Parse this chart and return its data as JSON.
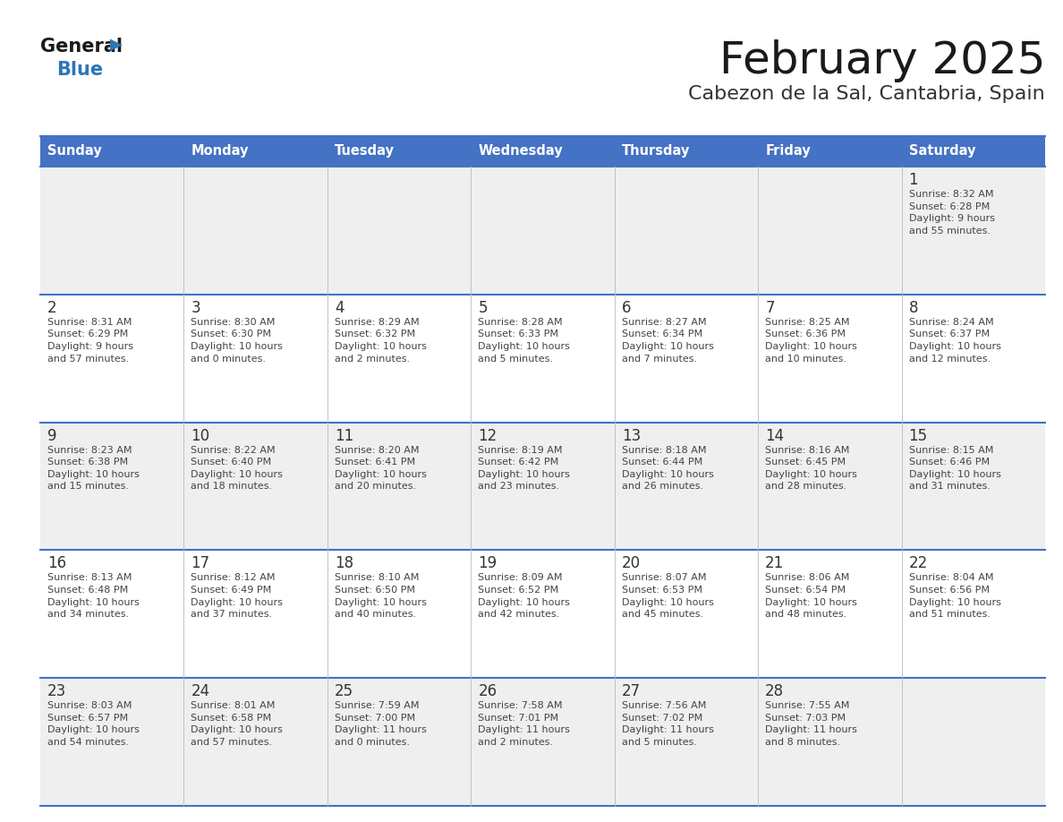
{
  "title": "February 2025",
  "subtitle": "Cabezon de la Sal, Cantabria, Spain",
  "days_of_week": [
    "Sunday",
    "Monday",
    "Tuesday",
    "Wednesday",
    "Thursday",
    "Friday",
    "Saturday"
  ],
  "header_bg": "#4472C4",
  "header_text": "#FFFFFF",
  "cell_bg_row0": "#EFEFEF",
  "cell_bg_row1": "#FFFFFF",
  "cell_bg_row2": "#EFEFEF",
  "cell_bg_row3": "#FFFFFF",
  "cell_bg_row4": "#EFEFEF",
  "border_color": "#4472C4",
  "grid_line_color": "#CCCCCC",
  "day_number_color": "#333333",
  "info_text_color": "#444444",
  "title_color": "#1a1a1a",
  "subtitle_color": "#333333",
  "logo_general_color": "#1a1a1a",
  "logo_blue_color": "#2E75B6",
  "weeks": [
    {
      "days": [
        {
          "date": null,
          "info": null
        },
        {
          "date": null,
          "info": null
        },
        {
          "date": null,
          "info": null
        },
        {
          "date": null,
          "info": null
        },
        {
          "date": null,
          "info": null
        },
        {
          "date": null,
          "info": null
        },
        {
          "date": 1,
          "info": "Sunrise: 8:32 AM\nSunset: 6:28 PM\nDaylight: 9 hours\nand 55 minutes."
        }
      ]
    },
    {
      "days": [
        {
          "date": 2,
          "info": "Sunrise: 8:31 AM\nSunset: 6:29 PM\nDaylight: 9 hours\nand 57 minutes."
        },
        {
          "date": 3,
          "info": "Sunrise: 8:30 AM\nSunset: 6:30 PM\nDaylight: 10 hours\nand 0 minutes."
        },
        {
          "date": 4,
          "info": "Sunrise: 8:29 AM\nSunset: 6:32 PM\nDaylight: 10 hours\nand 2 minutes."
        },
        {
          "date": 5,
          "info": "Sunrise: 8:28 AM\nSunset: 6:33 PM\nDaylight: 10 hours\nand 5 minutes."
        },
        {
          "date": 6,
          "info": "Sunrise: 8:27 AM\nSunset: 6:34 PM\nDaylight: 10 hours\nand 7 minutes."
        },
        {
          "date": 7,
          "info": "Sunrise: 8:25 AM\nSunset: 6:36 PM\nDaylight: 10 hours\nand 10 minutes."
        },
        {
          "date": 8,
          "info": "Sunrise: 8:24 AM\nSunset: 6:37 PM\nDaylight: 10 hours\nand 12 minutes."
        }
      ]
    },
    {
      "days": [
        {
          "date": 9,
          "info": "Sunrise: 8:23 AM\nSunset: 6:38 PM\nDaylight: 10 hours\nand 15 minutes."
        },
        {
          "date": 10,
          "info": "Sunrise: 8:22 AM\nSunset: 6:40 PM\nDaylight: 10 hours\nand 18 minutes."
        },
        {
          "date": 11,
          "info": "Sunrise: 8:20 AM\nSunset: 6:41 PM\nDaylight: 10 hours\nand 20 minutes."
        },
        {
          "date": 12,
          "info": "Sunrise: 8:19 AM\nSunset: 6:42 PM\nDaylight: 10 hours\nand 23 minutes."
        },
        {
          "date": 13,
          "info": "Sunrise: 8:18 AM\nSunset: 6:44 PM\nDaylight: 10 hours\nand 26 minutes."
        },
        {
          "date": 14,
          "info": "Sunrise: 8:16 AM\nSunset: 6:45 PM\nDaylight: 10 hours\nand 28 minutes."
        },
        {
          "date": 15,
          "info": "Sunrise: 8:15 AM\nSunset: 6:46 PM\nDaylight: 10 hours\nand 31 minutes."
        }
      ]
    },
    {
      "days": [
        {
          "date": 16,
          "info": "Sunrise: 8:13 AM\nSunset: 6:48 PM\nDaylight: 10 hours\nand 34 minutes."
        },
        {
          "date": 17,
          "info": "Sunrise: 8:12 AM\nSunset: 6:49 PM\nDaylight: 10 hours\nand 37 minutes."
        },
        {
          "date": 18,
          "info": "Sunrise: 8:10 AM\nSunset: 6:50 PM\nDaylight: 10 hours\nand 40 minutes."
        },
        {
          "date": 19,
          "info": "Sunrise: 8:09 AM\nSunset: 6:52 PM\nDaylight: 10 hours\nand 42 minutes."
        },
        {
          "date": 20,
          "info": "Sunrise: 8:07 AM\nSunset: 6:53 PM\nDaylight: 10 hours\nand 45 minutes."
        },
        {
          "date": 21,
          "info": "Sunrise: 8:06 AM\nSunset: 6:54 PM\nDaylight: 10 hours\nand 48 minutes."
        },
        {
          "date": 22,
          "info": "Sunrise: 8:04 AM\nSunset: 6:56 PM\nDaylight: 10 hours\nand 51 minutes."
        }
      ]
    },
    {
      "days": [
        {
          "date": 23,
          "info": "Sunrise: 8:03 AM\nSunset: 6:57 PM\nDaylight: 10 hours\nand 54 minutes."
        },
        {
          "date": 24,
          "info": "Sunrise: 8:01 AM\nSunset: 6:58 PM\nDaylight: 10 hours\nand 57 minutes."
        },
        {
          "date": 25,
          "info": "Sunrise: 7:59 AM\nSunset: 7:00 PM\nDaylight: 11 hours\nand 0 minutes."
        },
        {
          "date": 26,
          "info": "Sunrise: 7:58 AM\nSunset: 7:01 PM\nDaylight: 11 hours\nand 2 minutes."
        },
        {
          "date": 27,
          "info": "Sunrise: 7:56 AM\nSunset: 7:02 PM\nDaylight: 11 hours\nand 5 minutes."
        },
        {
          "date": 28,
          "info": "Sunrise: 7:55 AM\nSunset: 7:03 PM\nDaylight: 11 hours\nand 8 minutes."
        },
        {
          "date": null,
          "info": null
        }
      ]
    }
  ],
  "cell_bg_colors": [
    "#EFEFEF",
    "#FFFFFF",
    "#EFEFEF",
    "#FFFFFF",
    "#EFEFEF"
  ]
}
